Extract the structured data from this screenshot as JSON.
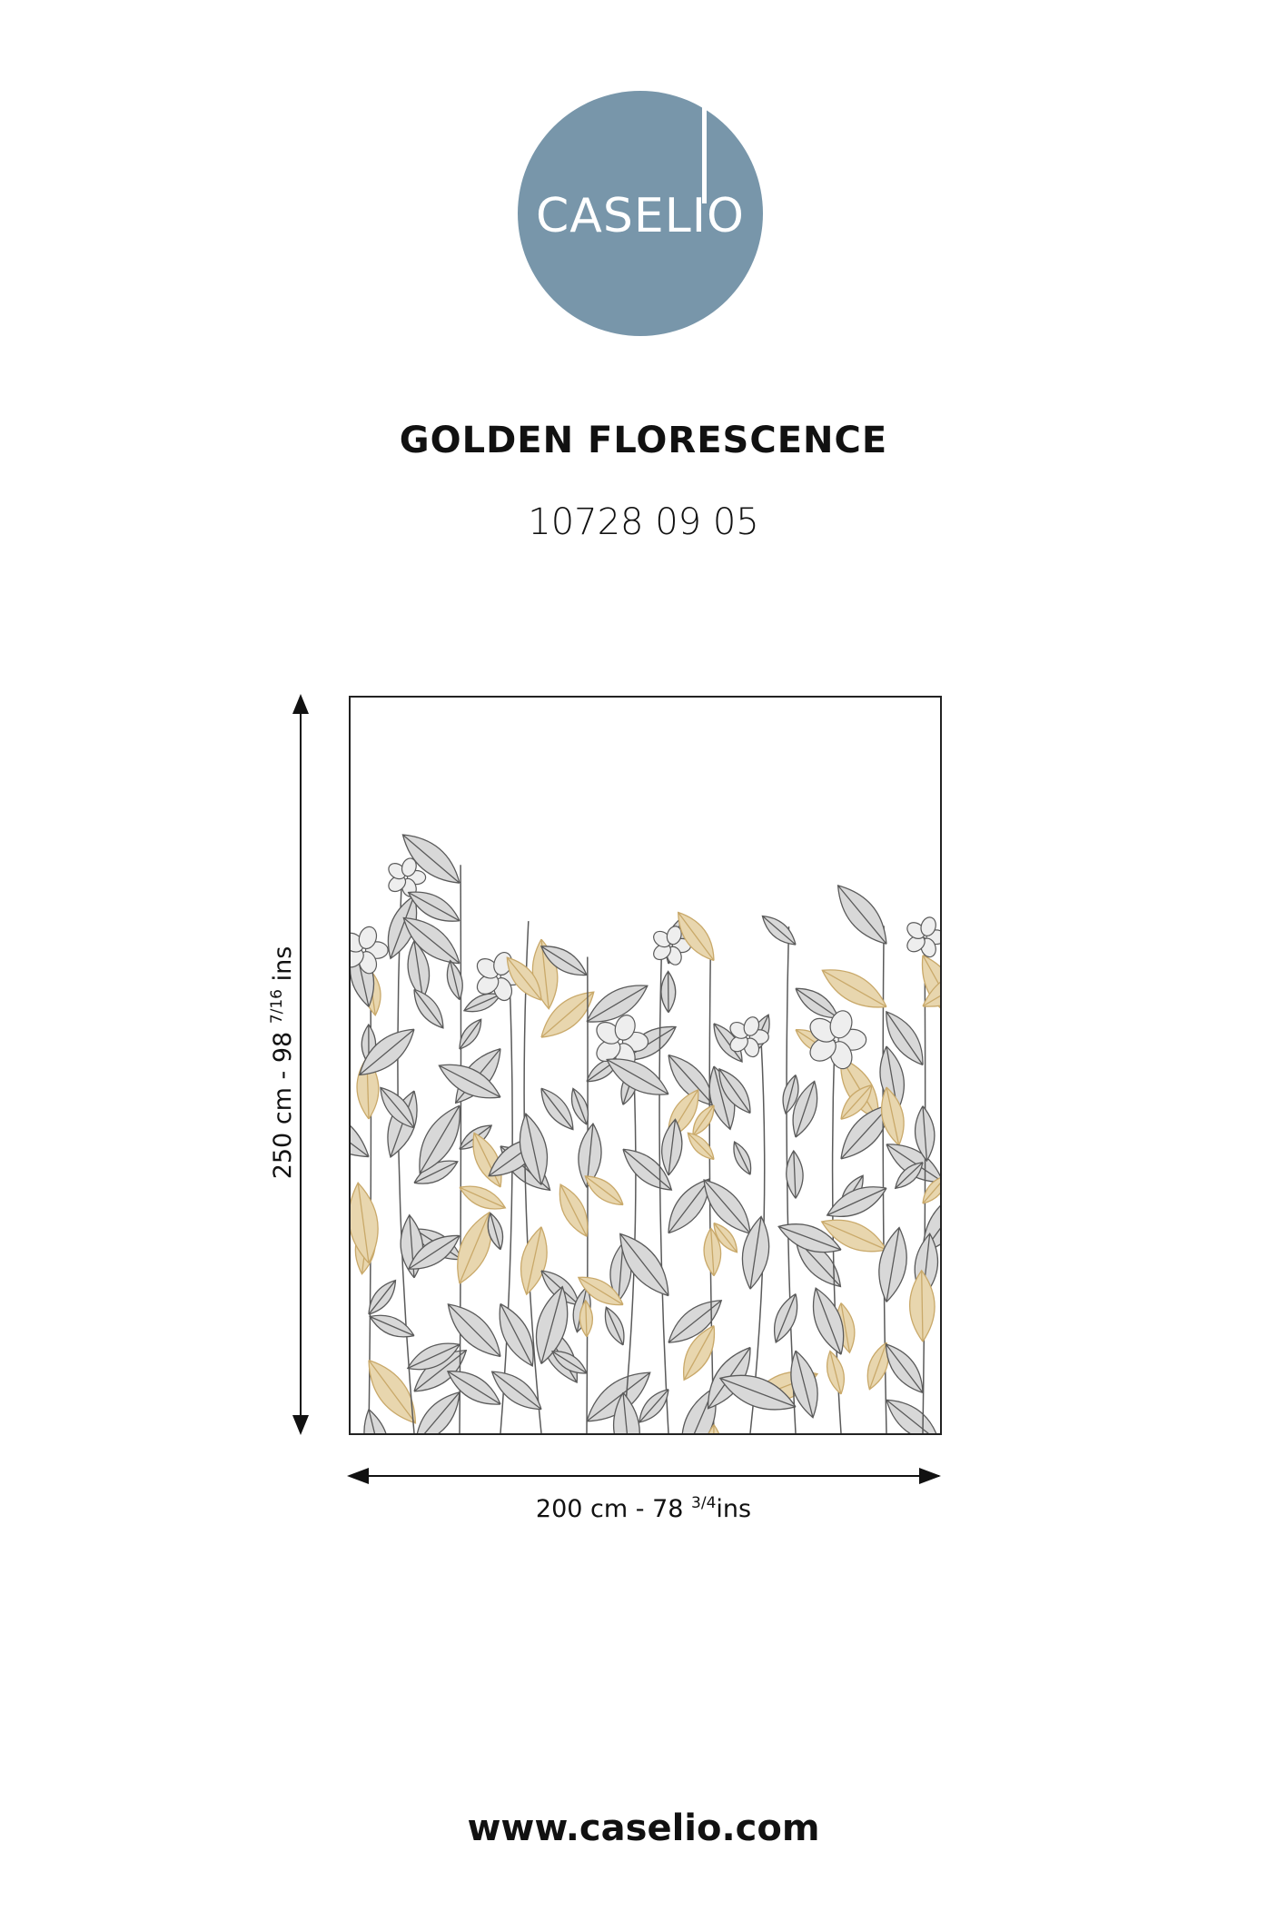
{
  "brand": {
    "logo_text": "CASELIO",
    "color": "#7896aa"
  },
  "product": {
    "name": "GOLDEN FLORESCENCE",
    "code": "10728 09 05"
  },
  "dimensions": {
    "height_cm": "250 cm - 98",
    "height_fraction": "7/16",
    "height_unit": "ins",
    "width_cm": "200 cm - 78",
    "width_fraction": "3/4",
    "width_unit": "ins"
  },
  "illustration": {
    "ink": "#5a5a5a",
    "gold": "#c9a96a"
  },
  "footer": {
    "url": "www.caselio.com"
  }
}
